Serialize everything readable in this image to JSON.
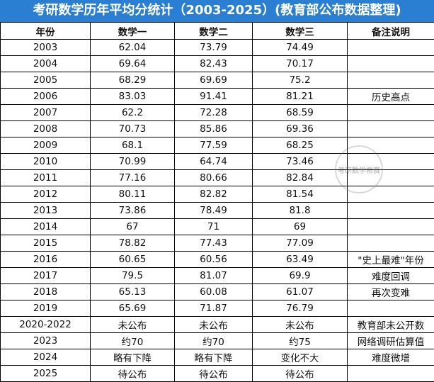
{
  "title": "考研数学历年平均分统计（2003-2025）(教育部公布数据整理)",
  "headers": [
    "年份",
    "数学一",
    "数学二",
    "数学三",
    "备注说明"
  ],
  "rows": [
    [
      "2003",
      "62.04",
      "73.79",
      "74.49",
      ""
    ],
    [
      "2004",
      "69.64",
      "82.43",
      "70.17",
      ""
    ],
    [
      "2005",
      "68.29",
      "69.69",
      "75.2",
      ""
    ],
    [
      "2006",
      "83.03",
      "91.41",
      "81.21",
      "历史高点"
    ],
    [
      "2007",
      "62.2",
      "72.28",
      "68.59",
      ""
    ],
    [
      "2008",
      "70.73",
      "85.86",
      "69.36",
      ""
    ],
    [
      "2009",
      "68.1",
      "77.59",
      "68.25",
      ""
    ],
    [
      "2010",
      "70.99",
      "64.74",
      "73.46",
      ""
    ],
    [
      "2011",
      "77.16",
      "80.66",
      "82.84",
      ""
    ],
    [
      "2012",
      "80.11",
      "82.82",
      "81.54",
      ""
    ],
    [
      "2013",
      "73.86",
      "78.49",
      "81.8",
      ""
    ],
    [
      "2014",
      "67",
      "71",
      "69",
      ""
    ],
    [
      "2015",
      "78.82",
      "77.43",
      "77.09",
      ""
    ],
    [
      "2016",
      "60.65",
      "60.56",
      "63.49",
      "\"史上最难\"年份"
    ],
    [
      "2017",
      "79.5",
      "81.07",
      "69.9",
      "难度回调"
    ],
    [
      "2018",
      "65.13",
      "60.08",
      "61.07",
      "再次变难"
    ],
    [
      "2019",
      "65.69",
      "71.87",
      "76.79",
      ""
    ],
    [
      "2020-2022",
      "未公布",
      "未公布",
      "未公布",
      "教育部未公开数"
    ],
    [
      "2023",
      "约70",
      "约70",
      "约75",
      "网络调研估算值"
    ],
    [
      "2024",
      "略有下降",
      "略有下降",
      "变化不大",
      "难度微增"
    ],
    [
      "2025",
      "待公布",
      "待公布",
      "待公布",
      ""
    ]
  ],
  "watermark": "考研数学希赛",
  "colors": {
    "title_bg": "#2b7fd3",
    "title_text": "#ffffff",
    "border": "#000000"
  }
}
